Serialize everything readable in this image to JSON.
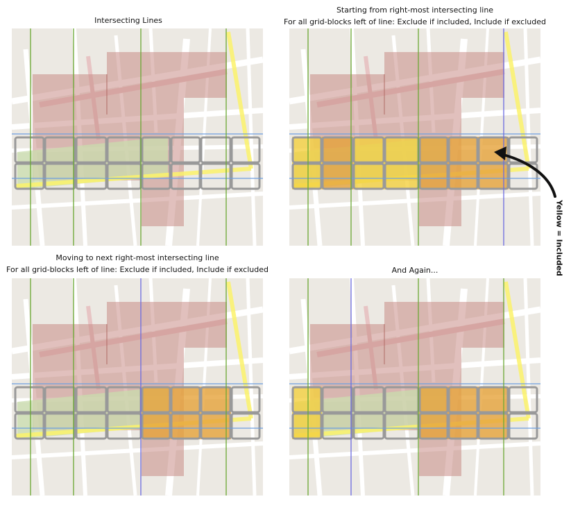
{
  "panels": [
    {
      "id": "intersecting-lines",
      "title_lines": [
        "Intersecting Lines"
      ],
      "active_line": -1,
      "included_columns": []
    },
    {
      "id": "rightmost-line",
      "title_lines": [
        "Starting from right-most intersecting line",
        "For all grid-blocks left of line: Exclude if included, Include if excluded"
      ],
      "active_line": 3,
      "included_columns": [
        0,
        1,
        2,
        3,
        4,
        5,
        6
      ]
    },
    {
      "id": "next-rightmost-line",
      "title_lines": [
        "Moving to next right-most intersecting line",
        "For all grid-blocks left of line: Exclude if included, Include if excluded"
      ],
      "active_line": 2,
      "included_columns": [
        4,
        5,
        6
      ]
    },
    {
      "id": "and-again",
      "title_lines": [
        "And Again..."
      ],
      "active_line": 1,
      "included_columns": [
        0,
        4,
        5,
        6
      ]
    }
  ],
  "annotation": {
    "label": "Yellow = Included"
  },
  "colors": {
    "map_background": "#ece9e3",
    "road": "#ffffff",
    "polygon": "#c98c86",
    "selection_polygon": "#c9dcae",
    "highlight_road": "#fbf26b",
    "grid_block_border": "#999999",
    "intersecting_line": "#6aa832",
    "active_line": "#6b6be0",
    "row_line": "#6d9fe0",
    "included_fill": "#f4cf3f",
    "included_overlap_fill": "#e6a23a",
    "arrow": "#111111"
  }
}
